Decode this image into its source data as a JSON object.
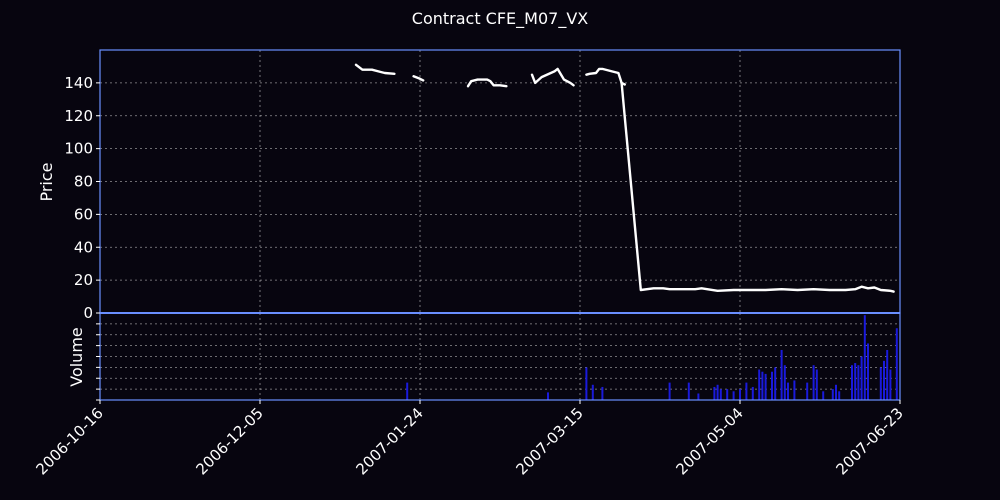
{
  "chart_data": {
    "type": "line",
    "title": "Contract CFE_M07_VX",
    "colors": {
      "background": "#07050f",
      "frame": "#6a8fff",
      "grid": "#cccccc",
      "price_line": "#ffffff",
      "volume_bars": "#1a1adc",
      "text": "#ffffff"
    },
    "x_tick_labels": [
      "2006-10-16",
      "2006-12-05",
      "2007-01-24",
      "2007-03-15",
      "2007-05-04",
      "2007-06-23"
    ],
    "x_range": [
      "2006-10-16",
      "2007-06-23"
    ],
    "grid": true,
    "price_panel": {
      "ylabel": "Price",
      "ylim": [
        0,
        160
      ],
      "y_ticks": [
        0,
        20,
        40,
        60,
        80,
        100,
        120,
        140
      ],
      "segments": [
        [
          [
            "2007-01-04",
            151
          ],
          [
            "2007-01-06",
            148
          ],
          [
            "2007-01-09",
            148
          ],
          [
            "2007-01-11",
            147
          ],
          [
            "2007-01-13",
            146
          ],
          [
            "2007-01-16",
            145.5
          ]
        ],
        [
          [
            "2007-01-22",
            144
          ],
          [
            "2007-01-24",
            142.5
          ],
          [
            "2007-01-25",
            141.5
          ]
        ],
        [
          [
            "2007-02-08",
            138
          ],
          [
            "2007-02-09",
            141
          ],
          [
            "2007-02-11",
            142
          ],
          [
            "2007-02-14",
            142
          ],
          [
            "2007-02-15",
            141
          ],
          [
            "2007-02-16",
            138.5
          ],
          [
            "2007-02-18",
            138.5
          ],
          [
            "2007-02-20",
            138
          ]
        ],
        [
          [
            "2007-02-28",
            145
          ],
          [
            "2007-03-01",
            140
          ],
          [
            "2007-03-03",
            143.5
          ],
          [
            "2007-03-07",
            147
          ],
          [
            "2007-03-08",
            148.5
          ],
          [
            "2007-03-10",
            142
          ],
          [
            "2007-03-12",
            140
          ],
          [
            "2007-03-13",
            138.5
          ]
        ],
        [
          [
            "2007-03-17",
            145
          ],
          [
            "2007-03-18",
            145.5
          ],
          [
            "2007-03-20",
            146
          ],
          [
            "2007-03-21",
            148.5
          ],
          [
            "2007-03-22",
            148.5
          ],
          [
            "2007-03-25",
            147
          ],
          [
            "2007-03-27",
            146
          ],
          [
            "2007-03-28",
            140
          ],
          [
            "2007-03-29",
            139
          ]
        ],
        [
          [
            "2007-03-28",
            140
          ],
          [
            "2007-04-03",
            14
          ],
          [
            "2007-04-07",
            15
          ],
          [
            "2007-04-10",
            15
          ],
          [
            "2007-04-12",
            14.5
          ],
          [
            "2007-04-20",
            14.5
          ],
          [
            "2007-04-22",
            15
          ],
          [
            "2007-04-27",
            13.5
          ],
          [
            "2007-05-02",
            14
          ],
          [
            "2007-05-07",
            14
          ],
          [
            "2007-05-12",
            14
          ],
          [
            "2007-05-17",
            14.5
          ],
          [
            "2007-05-22",
            14
          ],
          [
            "2007-05-27",
            14.5
          ],
          [
            "2007-06-01",
            14
          ],
          [
            "2007-06-06",
            14
          ],
          [
            "2007-06-09",
            14.5
          ],
          [
            "2007-06-11",
            16
          ],
          [
            "2007-06-13",
            15
          ],
          [
            "2007-06-15",
            15.5
          ],
          [
            "2007-06-17",
            14
          ],
          [
            "2007-06-20",
            13.5
          ],
          [
            "2007-06-21",
            13
          ]
        ]
      ]
    },
    "volume_panel": {
      "ylabel": "Volume",
      "ylim": [
        0,
        8
      ],
      "y_ticks": [
        0,
        1,
        2,
        3,
        4,
        5,
        6,
        7,
        8
      ],
      "bars": [
        [
          "2007-01-20",
          1.6
        ],
        [
          "2007-03-05",
          0.7
        ],
        [
          "2007-03-17",
          3.0
        ],
        [
          "2007-03-19",
          1.4
        ],
        [
          "2007-03-22",
          1.2
        ],
        [
          "2007-04-12",
          1.6
        ],
        [
          "2007-04-18",
          1.6
        ],
        [
          "2007-04-21",
          0.6
        ],
        [
          "2007-04-26",
          1.2
        ],
        [
          "2007-04-27",
          1.4
        ],
        [
          "2007-04-28",
          1.0
        ],
        [
          "2007-04-30",
          1.0
        ],
        [
          "2007-05-02",
          0.8
        ],
        [
          "2007-05-04",
          1.0
        ],
        [
          "2007-05-06",
          1.6
        ],
        [
          "2007-05-08",
          1.2
        ],
        [
          "2007-05-10",
          2.8
        ],
        [
          "2007-05-11",
          2.6
        ],
        [
          "2007-05-12",
          2.4
        ],
        [
          "2007-05-14",
          2.6
        ],
        [
          "2007-05-15",
          3.0
        ],
        [
          "2007-05-17",
          4.6
        ],
        [
          "2007-05-18",
          3.2
        ],
        [
          "2007-05-19",
          1.6
        ],
        [
          "2007-05-21",
          1.8
        ],
        [
          "2007-05-25",
          1.6
        ],
        [
          "2007-05-27",
          3.2
        ],
        [
          "2007-05-28",
          2.8
        ],
        [
          "2007-05-30",
          0.8
        ],
        [
          "2007-06-02",
          1.0
        ],
        [
          "2007-06-03",
          1.4
        ],
        [
          "2007-06-04",
          0.8
        ],
        [
          "2007-06-08",
          3.2
        ],
        [
          "2007-06-09",
          3.4
        ],
        [
          "2007-06-10",
          3.2
        ],
        [
          "2007-06-11",
          4.0
        ],
        [
          "2007-06-12",
          7.8
        ],
        [
          "2007-06-13",
          5.2
        ],
        [
          "2007-06-17",
          3.0
        ],
        [
          "2007-06-18",
          3.6
        ],
        [
          "2007-06-19",
          4.6
        ],
        [
          "2007-06-20",
          2.8
        ],
        [
          "2007-06-22",
          6.6
        ]
      ]
    }
  }
}
